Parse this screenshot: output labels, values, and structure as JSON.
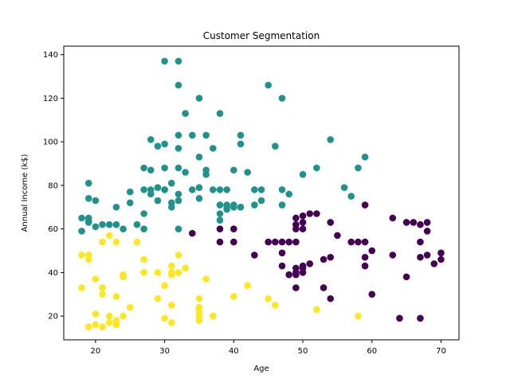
{
  "chart_data": {
    "type": "scatter",
    "title": "Customer Segmentation",
    "xlabel": "Age",
    "ylabel": "Annual Income (k$)",
    "xlim": [
      15.4,
      72.6
    ],
    "ylim": [
      9.1,
      143.9
    ],
    "xticks": [
      20,
      30,
      40,
      50,
      60,
      70
    ],
    "yticks": [
      20,
      40,
      60,
      80,
      100,
      120,
      140
    ],
    "grid": false,
    "legend": "none",
    "series": [
      {
        "color": "#440154",
        "points": [
          [
            34,
            58
          ],
          [
            38,
            54
          ],
          [
            38,
            60
          ],
          [
            40,
            54
          ],
          [
            40,
            60
          ],
          [
            43,
            48
          ],
          [
            45,
            54
          ],
          [
            46,
            54
          ],
          [
            47,
            54
          ],
          [
            47,
            49
          ],
          [
            47,
            43
          ],
          [
            48,
            39
          ],
          [
            48,
            54
          ],
          [
            49,
            39
          ],
          [
            49,
            40
          ],
          [
            49,
            42
          ],
          [
            49,
            54
          ],
          [
            49,
            60
          ],
          [
            49,
            62
          ],
          [
            49,
            65
          ],
          [
            50,
            42
          ],
          [
            50,
            43
          ],
          [
            50,
            40
          ],
          [
            50,
            60
          ],
          [
            50,
            63
          ],
          [
            50,
            66
          ],
          [
            51,
            44
          ],
          [
            51,
            67
          ],
          [
            52,
            67
          ],
          [
            53,
            33
          ],
          [
            53,
            46
          ],
          [
            54,
            47
          ],
          [
            54,
            28
          ],
          [
            54,
            63
          ],
          [
            55,
            57
          ],
          [
            57,
            54
          ],
          [
            58,
            54
          ],
          [
            59,
            54
          ],
          [
            59,
            43
          ],
          [
            59,
            71
          ],
          [
            59,
            47
          ],
          [
            60,
            50
          ],
          [
            60,
            30
          ],
          [
            63,
            48
          ],
          [
            63,
            65
          ],
          [
            64,
            19
          ],
          [
            65,
            38
          ],
          [
            65,
            63
          ],
          [
            66,
            63
          ],
          [
            67,
            62
          ],
          [
            67,
            54
          ],
          [
            67,
            47
          ],
          [
            67,
            19
          ],
          [
            68,
            59
          ],
          [
            68,
            63
          ],
          [
            68,
            48
          ],
          [
            69,
            44
          ],
          [
            70,
            49
          ],
          [
            70,
            46
          ],
          [
            49,
            33
          ]
        ]
      },
      {
        "color": "#21918c",
        "points": [
          [
            18,
            65
          ],
          [
            18,
            59
          ],
          [
            19,
            81
          ],
          [
            19,
            74
          ],
          [
            19,
            65
          ],
          [
            19,
            64
          ],
          [
            19,
            63
          ],
          [
            20,
            61
          ],
          [
            20,
            73
          ],
          [
            21,
            62
          ],
          [
            22,
            62
          ],
          [
            23,
            70
          ],
          [
            23,
            62
          ],
          [
            24,
            60
          ],
          [
            25,
            77
          ],
          [
            25,
            72
          ],
          [
            26,
            62
          ],
          [
            27,
            88
          ],
          [
            27,
            78
          ],
          [
            27,
            67
          ],
          [
            27,
            60
          ],
          [
            28,
            101
          ],
          [
            28,
            87
          ],
          [
            28,
            78
          ],
          [
            28,
            76
          ],
          [
            29,
            98
          ],
          [
            29,
            79
          ],
          [
            29,
            73
          ],
          [
            30,
            137
          ],
          [
            30,
            99
          ],
          [
            30,
            88
          ],
          [
            30,
            78
          ],
          [
            30,
            78
          ],
          [
            31,
            81
          ],
          [
            31,
            72
          ],
          [
            31,
            70
          ],
          [
            32,
            137
          ],
          [
            32,
            126
          ],
          [
            32,
            103
          ],
          [
            32,
            97
          ],
          [
            32,
            88
          ],
          [
            32,
            76
          ],
          [
            32,
            73
          ],
          [
            32,
            60
          ],
          [
            33,
            113
          ],
          [
            33,
            86
          ],
          [
            34,
            103
          ],
          [
            34,
            78
          ],
          [
            35,
            120
          ],
          [
            35,
            93
          ],
          [
            35,
            79
          ],
          [
            35,
            74
          ],
          [
            36,
            103
          ],
          [
            36,
            87
          ],
          [
            36,
            85
          ],
          [
            37,
            97
          ],
          [
            37,
            78
          ],
          [
            38,
            113
          ],
          [
            38,
            78
          ],
          [
            38,
            71
          ],
          [
            38,
            67
          ],
          [
            38,
            64
          ],
          [
            39,
            78
          ],
          [
            39,
            71
          ],
          [
            39,
            70
          ],
          [
            39,
            69
          ],
          [
            40,
            87
          ],
          [
            40,
            71
          ],
          [
            40,
            70
          ],
          [
            41,
            103
          ],
          [
            41,
            99
          ],
          [
            41,
            70
          ],
          [
            42,
            86
          ],
          [
            43,
            78
          ],
          [
            43,
            71
          ],
          [
            44,
            78
          ],
          [
            44,
            73
          ],
          [
            45,
            126
          ],
          [
            46,
            98
          ],
          [
            47,
            120
          ],
          [
            47,
            78
          ],
          [
            47,
            71
          ],
          [
            48,
            76
          ],
          [
            50,
            85
          ],
          [
            52,
            88
          ],
          [
            54,
            101
          ],
          [
            56,
            79
          ],
          [
            57,
            75
          ],
          [
            58,
            88
          ],
          [
            59,
            93
          ],
          [
            38,
            71
          ]
        ]
      },
      {
        "color": "#fde725",
        "points": [
          [
            18,
            48
          ],
          [
            18,
            33
          ],
          [
            19,
            48
          ],
          [
            19,
            46
          ],
          [
            19,
            15
          ],
          [
            20,
            37
          ],
          [
            20,
            21
          ],
          [
            20,
            16
          ],
          [
            21,
            54
          ],
          [
            21,
            33
          ],
          [
            21,
            30
          ],
          [
            21,
            15
          ],
          [
            22,
            57
          ],
          [
            22,
            20
          ],
          [
            22,
            17
          ],
          [
            23,
            54
          ],
          [
            23,
            29
          ],
          [
            23,
            18
          ],
          [
            23,
            16
          ],
          [
            24,
            39
          ],
          [
            24,
            38
          ],
          [
            24,
            20
          ],
          [
            25,
            24
          ],
          [
            26,
            54
          ],
          [
            27,
            46
          ],
          [
            27,
            40
          ],
          [
            27,
            40
          ],
          [
            29,
            40
          ],
          [
            29,
            28
          ],
          [
            30,
            34
          ],
          [
            30,
            19
          ],
          [
            31,
            43
          ],
          [
            31,
            40
          ],
          [
            31,
            39
          ],
          [
            31,
            25
          ],
          [
            31,
            17
          ],
          [
            32,
            48
          ],
          [
            32,
            40
          ],
          [
            33,
            42
          ],
          [
            35,
            28
          ],
          [
            35,
            24
          ],
          [
            35,
            23
          ],
          [
            35,
            21
          ],
          [
            35,
            20
          ],
          [
            35,
            18
          ],
          [
            36,
            37
          ],
          [
            37,
            20
          ],
          [
            40,
            29
          ],
          [
            42,
            34
          ],
          [
            45,
            28
          ],
          [
            46,
            25
          ],
          [
            52,
            23
          ],
          [
            58,
            20
          ]
        ]
      }
    ]
  }
}
